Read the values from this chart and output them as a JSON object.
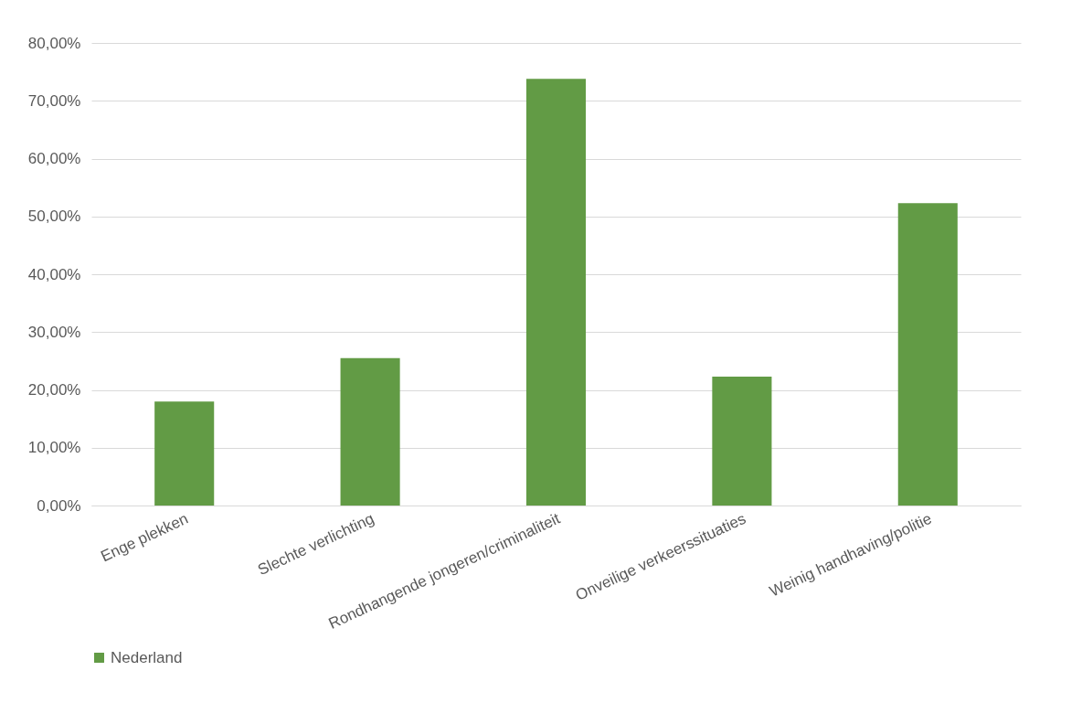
{
  "chart_data": {
    "type": "bar",
    "categories": [
      "Enge plekken",
      "Slechte verlichting",
      "Rondhangende jongeren/criminaliteit",
      "Onveilige verkeerssituaties",
      "Weinig handhaving/politie"
    ],
    "series": [
      {
        "name": "Nederland",
        "color": "#629b45",
        "values": [
          18.0,
          25.5,
          73.8,
          22.3,
          52.3
        ]
      }
    ],
    "ylim": [
      0,
      80
    ],
    "yticks": [
      {
        "value": 0,
        "label": "0,00%"
      },
      {
        "value": 10,
        "label": "10,00%"
      },
      {
        "value": 20,
        "label": "20,00%"
      },
      {
        "value": 30,
        "label": "30,00%"
      },
      {
        "value": 40,
        "label": "40,00%"
      },
      {
        "value": 50,
        "label": "50,00%"
      },
      {
        "value": 60,
        "label": "60,00%"
      },
      {
        "value": 70,
        "label": "70,00%"
      },
      {
        "value": 80,
        "label": "80,00%"
      }
    ],
    "grid": "y",
    "legend": "bottom"
  }
}
